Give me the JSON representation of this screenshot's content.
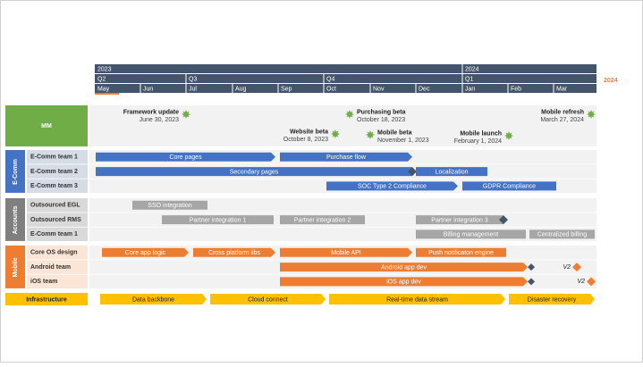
{
  "timeline": {
    "years": [
      "2023",
      "2024"
    ],
    "quarters": [
      "Q2",
      "Q3",
      "Q4",
      "Q1"
    ],
    "months": [
      "May",
      "Jun",
      "Jul",
      "Aug",
      "Sep",
      "Oct",
      "Nov",
      "Dec",
      "Jan",
      "Feb",
      "Mar"
    ],
    "current_year": "2024"
  },
  "milestones": {
    "label": "MM",
    "items": [
      {
        "title": "Framework update",
        "date": "June 30, 2023"
      },
      {
        "title": "Purchasing beta",
        "date": "October 18, 2023"
      },
      {
        "title": "Website beta",
        "date": "October 8, 2023"
      },
      {
        "title": "Mobile beta",
        "date": "November 1, 2023"
      },
      {
        "title": "Mobile launch",
        "date": "February 1, 2024"
      },
      {
        "title": "Mobile refresh",
        "date": "March 27, 2024"
      }
    ]
  },
  "groups": [
    {
      "label": "E-Comm",
      "rows": [
        {
          "label": "E-Comm team 1",
          "tasks": [
            "Core pages",
            "Purchase flow"
          ]
        },
        {
          "label": "E-Comm team 2",
          "tasks": [
            "Secondary pages",
            "Localization"
          ]
        },
        {
          "label": "E-Comm team 3",
          "tasks": [
            "SOC Type 2 Compliance",
            "GDPR Compliance"
          ]
        }
      ]
    },
    {
      "label": "Accounts",
      "rows": [
        {
          "label": "Outsourced EGL",
          "tasks": [
            "SSO integration"
          ]
        },
        {
          "label": "Outsourced RMS",
          "tasks": [
            "Partner integration 1",
            "Partner integration 2",
            "Partner integration 3"
          ]
        },
        {
          "label": "E-Comm team 1",
          "tasks": [
            "Billing management",
            "Centralized billing"
          ]
        }
      ]
    },
    {
      "label": "Mobile",
      "rows": [
        {
          "label": "Core OS design",
          "tasks": [
            "Core app logic",
            "Cross platform libs",
            "Mobile API",
            "Push notificaton engine"
          ]
        },
        {
          "label": "Android team",
          "tasks": [
            "Android app dev"
          ],
          "marker": "V2"
        },
        {
          "label": "iOS team",
          "tasks": [
            "iOS app dev"
          ],
          "marker": "V2"
        }
      ]
    }
  ],
  "infrastructure": {
    "label": "Infrastructure",
    "tasks": [
      "Data backbone",
      "Cloud connect",
      "Real-time data stream",
      "Disaster recovery"
    ]
  }
}
